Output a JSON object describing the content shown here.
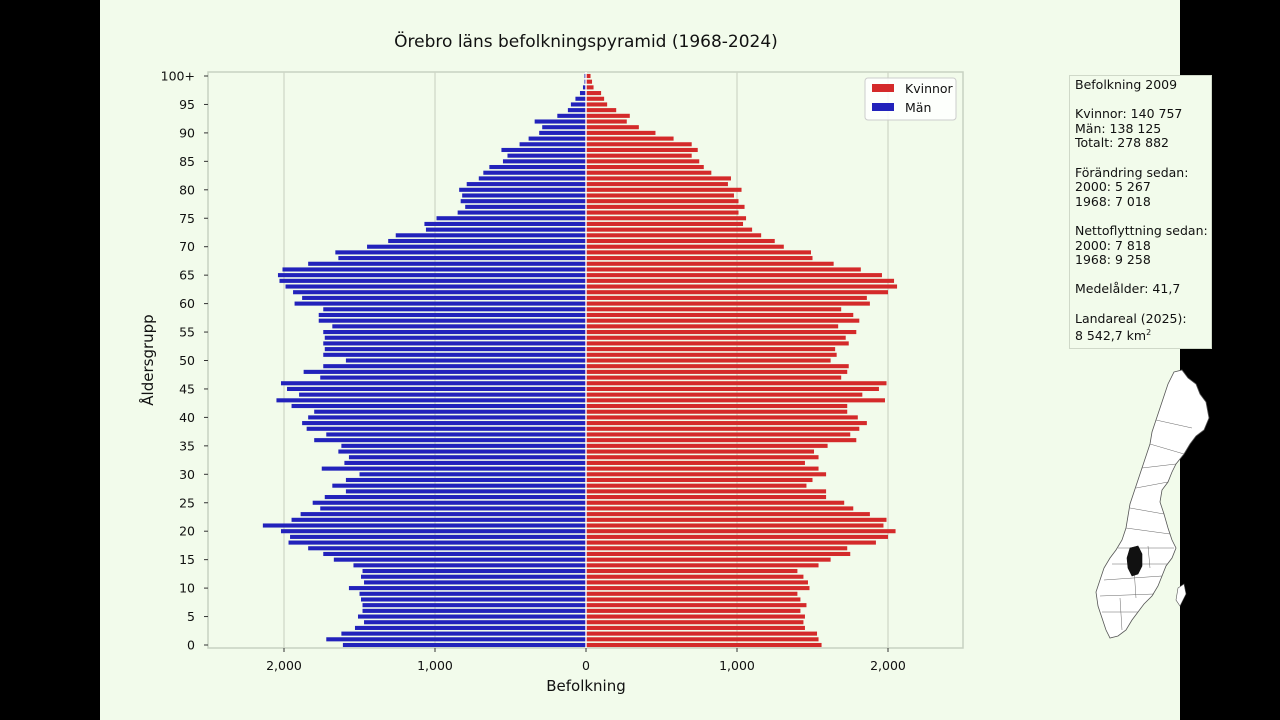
{
  "chart_data": {
    "type": "bar",
    "orientation": "horizontal-population-pyramid",
    "title": "Örebro läns befolkningspyramid (1968-2024)",
    "xlabel": "Befolkning",
    "ylabel": "Åldersgrupp",
    "xlim": [
      -2500,
      2500
    ],
    "x_ticks": [
      {
        "value": -2000,
        "label": "2,000"
      },
      {
        "value": -1000,
        "label": "1,000"
      },
      {
        "value": 0,
        "label": "0"
      },
      {
        "value": 1000,
        "label": "1,000"
      },
      {
        "value": 2000,
        "label": "2,000"
      }
    ],
    "y_ticks": [
      {
        "value": 0,
        "label": "0"
      },
      {
        "value": 5,
        "label": "5"
      },
      {
        "value": 10,
        "label": "10"
      },
      {
        "value": 15,
        "label": "15"
      },
      {
        "value": 20,
        "label": "20"
      },
      {
        "value": 25,
        "label": "25"
      },
      {
        "value": 30,
        "label": "30"
      },
      {
        "value": 35,
        "label": "35"
      },
      {
        "value": 40,
        "label": "40"
      },
      {
        "value": 45,
        "label": "45"
      },
      {
        "value": 50,
        "label": "50"
      },
      {
        "value": 55,
        "label": "55"
      },
      {
        "value": 60,
        "label": "60"
      },
      {
        "value": 65,
        "label": "65"
      },
      {
        "value": 70,
        "label": "70"
      },
      {
        "value": 75,
        "label": "75"
      },
      {
        "value": 80,
        "label": "80"
      },
      {
        "value": 85,
        "label": "85"
      },
      {
        "value": 90,
        "label": "90"
      },
      {
        "value": 95,
        "label": "95"
      },
      {
        "value": 100,
        "label": "100+"
      }
    ],
    "grid": "vertical",
    "legend_position": "top-right",
    "ages": [
      0,
      1,
      2,
      3,
      4,
      5,
      6,
      7,
      8,
      9,
      10,
      11,
      12,
      13,
      14,
      15,
      16,
      17,
      18,
      19,
      20,
      21,
      22,
      23,
      24,
      25,
      26,
      27,
      28,
      29,
      30,
      31,
      32,
      33,
      34,
      35,
      36,
      37,
      38,
      39,
      40,
      41,
      42,
      43,
      44,
      45,
      46,
      47,
      48,
      49,
      50,
      51,
      52,
      53,
      54,
      55,
      56,
      57,
      58,
      59,
      60,
      61,
      62,
      63,
      64,
      65,
      66,
      67,
      68,
      69,
      70,
      71,
      72,
      73,
      74,
      75,
      76,
      77,
      78,
      79,
      80,
      81,
      82,
      83,
      84,
      85,
      86,
      87,
      88,
      89,
      90,
      91,
      92,
      93,
      94,
      95,
      96,
      97,
      98,
      99,
      100
    ],
    "series": [
      {
        "name": "Kvinnor",
        "color": "#d42a2a",
        "values": [
          1560,
          1540,
          1530,
          1450,
          1440,
          1450,
          1420,
          1460,
          1420,
          1400,
          1480,
          1470,
          1440,
          1400,
          1540,
          1620,
          1750,
          1730,
          1920,
          2000,
          2050,
          1970,
          1990,
          1880,
          1770,
          1710,
          1590,
          1590,
          1460,
          1500,
          1590,
          1540,
          1450,
          1540,
          1510,
          1600,
          1790,
          1750,
          1810,
          1860,
          1800,
          1730,
          1730,
          1980,
          1830,
          1940,
          1990,
          1690,
          1730,
          1740,
          1620,
          1660,
          1650,
          1740,
          1720,
          1790,
          1670,
          1810,
          1770,
          1690,
          1880,
          1860,
          2000,
          2060,
          2040,
          1960,
          1820,
          1640,
          1500,
          1490,
          1310,
          1250,
          1160,
          1100,
          1040,
          1060,
          1010,
          1050,
          1010,
          980,
          1030,
          940,
          960,
          830,
          780,
          750,
          700,
          740,
          700,
          580,
          460,
          350,
          270,
          290,
          200,
          140,
          120,
          100,
          50,
          40,
          30
        ]
      },
      {
        "name": "Män",
        "color": "#2222bb",
        "values": [
          1610,
          1720,
          1620,
          1530,
          1470,
          1510,
          1480,
          1480,
          1490,
          1500,
          1570,
          1470,
          1490,
          1480,
          1540,
          1670,
          1740,
          1840,
          1970,
          1960,
          2020,
          2140,
          1950,
          1890,
          1760,
          1810,
          1730,
          1590,
          1680,
          1590,
          1500,
          1750,
          1600,
          1570,
          1640,
          1620,
          1800,
          1720,
          1850,
          1880,
          1840,
          1800,
          1950,
          2050,
          1900,
          1980,
          2020,
          1760,
          1870,
          1740,
          1590,
          1740,
          1730,
          1740,
          1730,
          1740,
          1680,
          1770,
          1770,
          1740,
          1930,
          1880,
          1940,
          1990,
          2030,
          2040,
          2010,
          1840,
          1640,
          1660,
          1450,
          1310,
          1260,
          1060,
          1070,
          990,
          850,
          800,
          830,
          820,
          840,
          790,
          710,
          680,
          640,
          550,
          520,
          560,
          440,
          380,
          310,
          290,
          340,
          190,
          120,
          100,
          70,
          40,
          20,
          10,
          10
        ]
      }
    ]
  },
  "legend": {
    "items": [
      {
        "label": "Kvinnor",
        "color": "#d42a2a"
      },
      {
        "label": "Män",
        "color": "#2222bb"
      }
    ]
  },
  "info": {
    "title": "Befolkning 2009",
    "women": "Kvinnor: 140 757",
    "men": "Män: 138 125",
    "total": "Totalt: 278 882",
    "change_header": "Förändring sedan:",
    "change_2000": "2000: 5 267",
    "change_1968": "1968: 7 018",
    "net_header": "Nettoflyttning sedan:",
    "net_2000": "2000: 7 818",
    "net_1968": "1968: 9 258",
    "median_age": "Medelålder: 41,7",
    "area_header": "Landareal (2025):",
    "area_value": "8 542,7 km",
    "area_unit_sup": "2"
  }
}
